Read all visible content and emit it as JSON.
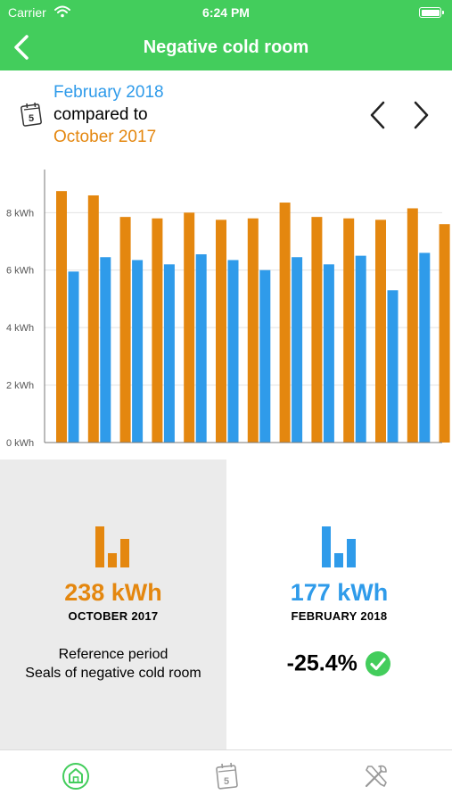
{
  "status_bar": {
    "carrier": "Carrier",
    "time": "6:24 PM"
  },
  "nav": {
    "title": "Negative cold room",
    "back_icon": "chevron-left-icon"
  },
  "period": {
    "current": "February 2018",
    "compared_to": "compared to",
    "reference": "October 2017",
    "calendar_icon": "calendar-icon",
    "prev_icon": "chevron-left-icon",
    "next_icon": "chevron-right-icon"
  },
  "colors": {
    "brand": "#43cd5c",
    "current": "#2f9bea",
    "reference": "#e4870f",
    "ok": "#43cd5c"
  },
  "chart_data": {
    "type": "bar",
    "ylim": [
      0,
      9.5
    ],
    "yticks": [
      {
        "v": 0,
        "label": "0 kWh"
      },
      {
        "v": 2,
        "label": "2 kWh"
      },
      {
        "v": 4,
        "label": "4 kWh"
      },
      {
        "v": 6,
        "label": "6 kWh"
      },
      {
        "v": 8,
        "label": "8 kWh"
      }
    ],
    "grid": true,
    "series": [
      {
        "color": "#e4870f",
        "values": [
          8.75,
          8.6,
          7.85,
          7.8,
          8.0,
          7.75,
          7.8,
          8.35,
          7.85,
          7.8,
          7.75,
          8.15,
          7.6
        ]
      },
      {
        "color": "#2f9bea",
        "values": [
          5.95,
          6.45,
          6.35,
          6.2,
          6.55,
          6.35,
          6.0,
          6.45,
          6.2,
          6.5,
          5.3,
          6.6
        ]
      }
    ]
  },
  "comparison": {
    "reference": {
      "value": "238 kWh",
      "period": "OCTOBER 2017",
      "note_line1": "Reference period",
      "note_line2": "Seals of negative cold room",
      "icon": "bar-chart-icon"
    },
    "current": {
      "value": "177 kWh",
      "period": "FEBRUARY 2018",
      "change": "-25.4%",
      "status_icon": "check-circle-icon",
      "icon": "bar-chart-icon"
    }
  },
  "tabs": [
    {
      "name": "home",
      "icon": "home-icon",
      "active": true
    },
    {
      "name": "calendar",
      "icon": "calendar-icon",
      "active": false
    },
    {
      "name": "tools",
      "icon": "tools-icon",
      "active": false
    }
  ]
}
